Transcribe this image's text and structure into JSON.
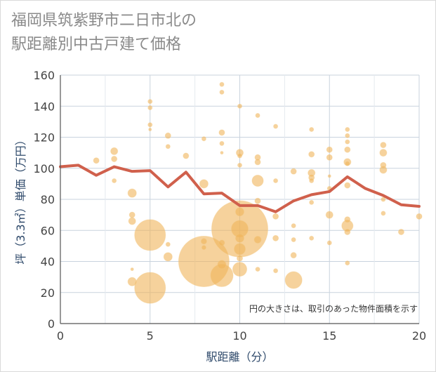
{
  "chart_data": {
    "type": "scatter",
    "title_line1": "福岡県筑紫野市二日市北の",
    "title_line2": "駅距離別中古戸建て価格",
    "xlabel": "駅距離（分）",
    "ylabel": "坪（3.3㎡）単価（万円）",
    "note": "円の大きさは、取引のあった物件面積を示す",
    "xlim": [
      0,
      20
    ],
    "ylim": [
      0,
      160
    ],
    "xticks": [
      0,
      5,
      10,
      15,
      20
    ],
    "yticks": [
      0,
      20,
      40,
      60,
      80,
      100,
      120,
      140,
      160
    ],
    "colors": {
      "bubble": "#f0b45a",
      "line": "#d0604c",
      "grid": "#c9d3de",
      "axis_text": "#2f4a6b"
    },
    "series": [
      {
        "kind": "bubble",
        "points": [
          {
            "x": 2,
            "y": 105,
            "s": 4
          },
          {
            "x": 3,
            "y": 111,
            "s": 5
          },
          {
            "x": 3,
            "y": 106,
            "s": 4
          },
          {
            "x": 3,
            "y": 92,
            "s": 3
          },
          {
            "x": 4,
            "y": 84,
            "s": 6
          },
          {
            "x": 4,
            "y": 70,
            "s": 4
          },
          {
            "x": 4,
            "y": 66,
            "s": 5
          },
          {
            "x": 4,
            "y": 35,
            "s": 2
          },
          {
            "x": 4,
            "y": 27,
            "s": 6
          },
          {
            "x": 5,
            "y": 143,
            "s": 3
          },
          {
            "x": 5,
            "y": 139,
            "s": 3
          },
          {
            "x": 5,
            "y": 128,
            "s": 3
          },
          {
            "x": 5,
            "y": 125,
            "s": 2
          },
          {
            "x": 5,
            "y": 57,
            "s": 22
          },
          {
            "x": 5,
            "y": 23,
            "s": 22
          },
          {
            "x": 6,
            "y": 121,
            "s": 4
          },
          {
            "x": 6,
            "y": 114,
            "s": 3
          },
          {
            "x": 6,
            "y": 51,
            "s": 3
          },
          {
            "x": 6,
            "y": 43,
            "s": 6
          },
          {
            "x": 7,
            "y": 108,
            "s": 4
          },
          {
            "x": 8,
            "y": 119,
            "s": 3
          },
          {
            "x": 8,
            "y": 90,
            "s": 6
          },
          {
            "x": 8,
            "y": 53,
            "s": 4
          },
          {
            "x": 8,
            "y": 49,
            "s": 3
          },
          {
            "x": 8,
            "y": 40,
            "s": 36
          },
          {
            "x": 9,
            "y": 154,
            "s": 3
          },
          {
            "x": 9,
            "y": 149,
            "s": 3
          },
          {
            "x": 9,
            "y": 123,
            "s": 4
          },
          {
            "x": 9,
            "y": 116,
            "s": 3
          },
          {
            "x": 9,
            "y": 110,
            "s": 2
          },
          {
            "x": 9,
            "y": 52,
            "s": 4
          },
          {
            "x": 9,
            "y": 38,
            "s": 6
          },
          {
            "x": 9,
            "y": 31,
            "s": 16
          },
          {
            "x": 10,
            "y": 140,
            "s": 3
          },
          {
            "x": 10,
            "y": 110,
            "s": 5
          },
          {
            "x": 10,
            "y": 108,
            "s": 3
          },
          {
            "x": 10,
            "y": 102,
            "s": 3
          },
          {
            "x": 10,
            "y": 72,
            "s": 6
          },
          {
            "x": 10,
            "y": 61,
            "s": 40
          },
          {
            "x": 10,
            "y": 61,
            "s": 12
          },
          {
            "x": 10,
            "y": 55,
            "s": 6
          },
          {
            "x": 10,
            "y": 48,
            "s": 8
          },
          {
            "x": 10,
            "y": 42,
            "s": 4
          },
          {
            "x": 10,
            "y": 35,
            "s": 10
          },
          {
            "x": 11,
            "y": 134,
            "s": 3
          },
          {
            "x": 11,
            "y": 107,
            "s": 4
          },
          {
            "x": 11,
            "y": 104,
            "s": 4
          },
          {
            "x": 11,
            "y": 92,
            "s": 8
          },
          {
            "x": 11,
            "y": 79,
            "s": 4
          },
          {
            "x": 11,
            "y": 54,
            "s": 5
          },
          {
            "x": 11,
            "y": 35,
            "s": 3
          },
          {
            "x": 12,
            "y": 127,
            "s": 3
          },
          {
            "x": 12,
            "y": 92,
            "s": 3
          },
          {
            "x": 12,
            "y": 69,
            "s": 4
          },
          {
            "x": 12,
            "y": 55,
            "s": 4
          },
          {
            "x": 12,
            "y": 34,
            "s": 3
          },
          {
            "x": 13,
            "y": 98,
            "s": 4
          },
          {
            "x": 13,
            "y": 63,
            "s": 3
          },
          {
            "x": 13,
            "y": 54,
            "s": 3
          },
          {
            "x": 13,
            "y": 44,
            "s": 4
          },
          {
            "x": 13,
            "y": 28,
            "s": 12
          },
          {
            "x": 14,
            "y": 125,
            "s": 3
          },
          {
            "x": 14,
            "y": 109,
            "s": 4
          },
          {
            "x": 14,
            "y": 97,
            "s": 5
          },
          {
            "x": 14,
            "y": 94,
            "s": 4
          },
          {
            "x": 14,
            "y": 92,
            "s": 3
          },
          {
            "x": 14,
            "y": 78,
            "s": 3
          },
          {
            "x": 14,
            "y": 55,
            "s": 3
          },
          {
            "x": 15,
            "y": 112,
            "s": 4
          },
          {
            "x": 15,
            "y": 107,
            "s": 4
          },
          {
            "x": 15,
            "y": 95,
            "s": 2
          },
          {
            "x": 15,
            "y": 87,
            "s": 3
          },
          {
            "x": 15,
            "y": 70,
            "s": 5
          },
          {
            "x": 15,
            "y": 52,
            "s": 3
          },
          {
            "x": 16,
            "y": 125,
            "s": 3
          },
          {
            "x": 16,
            "y": 121,
            "s": 3
          },
          {
            "x": 16,
            "y": 117,
            "s": 3
          },
          {
            "x": 16,
            "y": 112,
            "s": 4
          },
          {
            "x": 16,
            "y": 104,
            "s": 5
          },
          {
            "x": 16,
            "y": 103,
            "s": 3
          },
          {
            "x": 16,
            "y": 89,
            "s": 4
          },
          {
            "x": 16,
            "y": 67,
            "s": 4
          },
          {
            "x": 16,
            "y": 63,
            "s": 8
          },
          {
            "x": 16,
            "y": 59,
            "s": 4
          },
          {
            "x": 16,
            "y": 39,
            "s": 3
          },
          {
            "x": 18,
            "y": 115,
            "s": 4
          },
          {
            "x": 18,
            "y": 110,
            "s": 5
          },
          {
            "x": 18,
            "y": 102,
            "s": 4
          },
          {
            "x": 18,
            "y": 99,
            "s": 5
          },
          {
            "x": 18,
            "y": 80,
            "s": 3
          },
          {
            "x": 18,
            "y": 71,
            "s": 3
          },
          {
            "x": 19,
            "y": 59,
            "s": 4
          },
          {
            "x": 20,
            "y": 69,
            "s": 4
          }
        ]
      },
      {
        "kind": "line",
        "x": [
          0,
          1,
          2,
          3,
          4,
          5,
          6,
          7,
          8,
          9,
          10,
          11,
          12,
          13,
          14,
          15,
          16,
          17,
          18,
          19,
          20
        ],
        "y": [
          101,
          102,
          95.5,
          101,
          98,
          98.5,
          88,
          97.5,
          83.5,
          84,
          76,
          76,
          72,
          79,
          83,
          85,
          94.5,
          87,
          82.5,
          76.5,
          75.5
        ]
      }
    ]
  }
}
